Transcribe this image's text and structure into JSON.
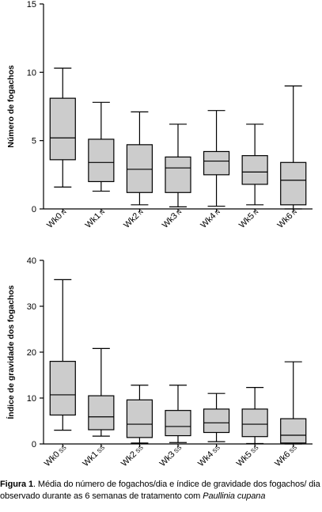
{
  "chart_data": [
    {
      "type": "box",
      "ylabel": "Número de fogachos",
      "ylim": [
        0,
        15
      ],
      "yticks": [
        0,
        5,
        10,
        15
      ],
      "grid": false,
      "categories": [
        {
          "main": "Wk0",
          "sub": "N"
        },
        {
          "main": "Wk1",
          "sub": "N"
        },
        {
          "main": "Wk2",
          "sub": "N"
        },
        {
          "main": "Wk3",
          "sub": "N"
        },
        {
          "main": "Wk4",
          "sub": "N"
        },
        {
          "main": "Wk5",
          "sub": "N"
        },
        {
          "main": "Wk6",
          "sub": "N"
        }
      ],
      "boxes": [
        {
          "min": 1.6,
          "q1": 3.6,
          "median": 5.2,
          "q3": 8.1,
          "max": 10.3
        },
        {
          "min": 1.3,
          "q1": 2.0,
          "median": 3.4,
          "q3": 5.1,
          "max": 7.8
        },
        {
          "min": 0.3,
          "q1": 1.2,
          "median": 2.9,
          "q3": 4.7,
          "max": 7.1
        },
        {
          "min": 0.15,
          "q1": 1.2,
          "median": 3.0,
          "q3": 3.8,
          "max": 6.2
        },
        {
          "min": 0.2,
          "q1": 2.5,
          "median": 3.5,
          "q3": 4.2,
          "max": 7.2
        },
        {
          "min": 0.3,
          "q1": 1.8,
          "median": 2.7,
          "q3": 3.9,
          "max": 6.2
        },
        {
          "min": 0.0,
          "q1": 0.3,
          "median": 2.1,
          "q3": 3.4,
          "max": 9.0
        }
      ]
    },
    {
      "type": "box",
      "ylabel": "Índice de gravidade dos fogachos",
      "ylim": [
        0,
        40
      ],
      "yticks": [
        0,
        10,
        20,
        30,
        40
      ],
      "grid": false,
      "categories": [
        {
          "main": "Wk0",
          "sub": "SS"
        },
        {
          "main": "Wk1",
          "sub": "SS"
        },
        {
          "main": "Wk2",
          "sub": "SS"
        },
        {
          "main": "Wk3",
          "sub": "SS"
        },
        {
          "main": "Wk4",
          "sub": "SS"
        },
        {
          "main": "Wk5",
          "sub": "SS"
        },
        {
          "main": "Wk6",
          "sub": "SS"
        }
      ],
      "boxes": [
        {
          "min": 3.0,
          "q1": 6.3,
          "median": 10.7,
          "q3": 18.0,
          "max": 35.8
        },
        {
          "min": 1.7,
          "q1": 3.1,
          "median": 5.9,
          "q3": 10.5,
          "max": 20.8
        },
        {
          "min": 0.2,
          "q1": 1.4,
          "median": 4.3,
          "q3": 9.6,
          "max": 12.8
        },
        {
          "min": 0.3,
          "q1": 1.8,
          "median": 3.8,
          "q3": 7.3,
          "max": 12.8
        },
        {
          "min": 0.5,
          "q1": 2.5,
          "median": 4.6,
          "q3": 7.6,
          "max": 11.0
        },
        {
          "min": 0.1,
          "q1": 1.6,
          "median": 4.3,
          "q3": 7.6,
          "max": 12.3
        },
        {
          "min": 0.0,
          "q1": 0.2,
          "median": 1.9,
          "q3": 5.5,
          "max": 17.9
        }
      ]
    }
  ],
  "caption": {
    "label": "Figura 1",
    "text": ". Média do número de fogachos/dia e índice de gravidade dos fogachos/ dia observado durante as 6 semanas de tratamento com ",
    "species": "Paullinia cupana"
  },
  "colors": {
    "box_fill": "#cccccc",
    "stroke": "#000000",
    "background": "#ffffff"
  }
}
